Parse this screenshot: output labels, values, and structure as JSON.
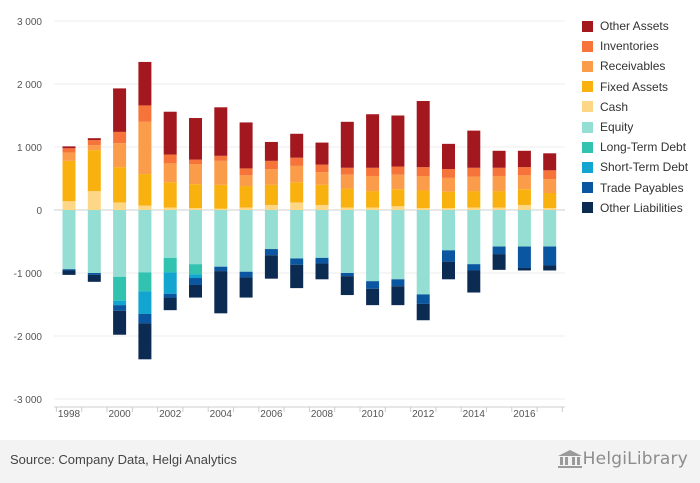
{
  "chart_data": {
    "type": "bar",
    "stacked": true,
    "years": [
      1998,
      1999,
      2000,
      2001,
      2002,
      2003,
      2004,
      2005,
      2006,
      2007,
      2008,
      2009,
      2010,
      2011,
      2012,
      2013,
      2014,
      2015,
      2016,
      2017
    ],
    "x_tick_labels": [
      "1998",
      "2000",
      "2002",
      "2004",
      "2006",
      "2008",
      "2010",
      "2012",
      "2014",
      "2016"
    ],
    "y_tick_labels": [
      "3 000",
      "2 000",
      "1 000",
      "0",
      "-1 000",
      "-2 000",
      "-3 000"
    ],
    "ylim": [
      -3000,
      3000
    ],
    "y_ticks": [
      3000,
      2000,
      1000,
      0,
      -1000,
      -2000,
      -3000
    ],
    "grid": true,
    "legend_position": "right",
    "assets": [
      {
        "name": "Cash",
        "color": "#fdd686",
        "values": [
          140,
          300,
          120,
          70,
          40,
          30,
          20,
          40,
          80,
          120,
          80,
          40,
          40,
          60,
          30,
          30,
          40,
          40,
          80,
          30
        ]
      },
      {
        "name": "Fixed Assets",
        "color": "#f8b10f",
        "values": [
          640,
          650,
          560,
          500,
          400,
          380,
          380,
          340,
          320,
          320,
          320,
          300,
          260,
          270,
          280,
          260,
          260,
          260,
          250,
          240
        ]
      },
      {
        "name": "Receivables",
        "color": "#fb9c4b",
        "values": [
          130,
          80,
          380,
          830,
          300,
          320,
          380,
          170,
          250,
          260,
          200,
          220,
          240,
          230,
          230,
          220,
          230,
          240,
          220,
          220
        ]
      },
      {
        "name": "Inventories",
        "color": "#f6743a",
        "values": [
          70,
          80,
          180,
          260,
          140,
          70,
          80,
          110,
          130,
          130,
          120,
          110,
          130,
          130,
          140,
          140,
          140,
          130,
          130,
          140
        ]
      },
      {
        "name": "Other Assets",
        "color": "#a3181e",
        "values": [
          30,
          30,
          690,
          690,
          680,
          660,
          770,
          730,
          300,
          380,
          350,
          730,
          850,
          810,
          1050,
          400,
          590,
          270,
          260,
          270
        ]
      }
    ],
    "liabilities": [
      {
        "name": "Equity",
        "color": "#94ded3",
        "values": [
          -940,
          -1000,
          -1060,
          -990,
          -760,
          -860,
          -900,
          -980,
          -620,
          -770,
          -760,
          -1000,
          -1130,
          -1100,
          -1340,
          -640,
          -860,
          -580,
          -580,
          -580
        ]
      },
      {
        "name": "Long-Term Debt",
        "color": "#31c3b0",
        "values": [
          0,
          0,
          -380,
          -300,
          -230,
          -160,
          0,
          0,
          0,
          0,
          0,
          0,
          0,
          0,
          0,
          0,
          0,
          0,
          0,
          0
        ]
      },
      {
        "name": "Short-Term Debt",
        "color": "#11a5cf",
        "values": [
          0,
          0,
          -70,
          -360,
          -340,
          -60,
          0,
          0,
          0,
          0,
          0,
          0,
          0,
          0,
          0,
          0,
          0,
          0,
          0,
          0
        ]
      },
      {
        "name": "Trade Payables",
        "color": "#0a56a0",
        "values": [
          -20,
          -30,
          -90,
          -150,
          -60,
          -110,
          -70,
          -90,
          -100,
          -100,
          -90,
          -50,
          -120,
          -110,
          -150,
          -180,
          -100,
          -120,
          -340,
          -300
        ]
      },
      {
        "name": "Other Liabilities",
        "color": "#0c2b53",
        "values": [
          -70,
          -110,
          -380,
          -570,
          -200,
          -200,
          -670,
          -320,
          -370,
          -370,
          -250,
          -300,
          -260,
          -300,
          -260,
          -280,
          -350,
          -250,
          -40,
          -80
        ]
      }
    ]
  },
  "legend": [
    {
      "label": "Other Assets",
      "color": "#a3181e"
    },
    {
      "label": "Inventories",
      "color": "#f6743a"
    },
    {
      "label": "Receivables",
      "color": "#fb9c4b"
    },
    {
      "label": "Fixed Assets",
      "color": "#f8b10f"
    },
    {
      "label": "Cash",
      "color": "#fdd686"
    },
    {
      "label": "Equity",
      "color": "#94ded3"
    },
    {
      "label": "Long-Term Debt",
      "color": "#31c3b0"
    },
    {
      "label": "Short-Term Debt",
      "color": "#11a5cf"
    },
    {
      "label": "Trade Payables",
      "color": "#0a56a0"
    },
    {
      "label": "Other Liabilities",
      "color": "#0c2b53"
    }
  ],
  "footer": {
    "source": "Source: Company Data, Helgi Analytics",
    "brand": "HelgiLibrary",
    "brand_icon": "library-building-icon"
  }
}
